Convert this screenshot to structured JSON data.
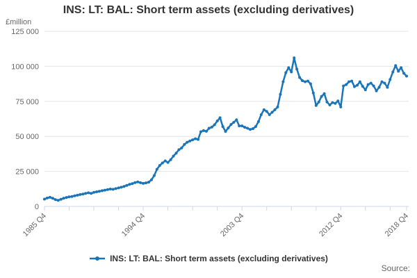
{
  "header": {
    "title": "INS: LT: BAL: Short term assets (excluding derivatives)"
  },
  "legend": {
    "label": "INS: LT: BAL: Short term assets (excluding derivatives)"
  },
  "footer": {
    "source_label": "Source:"
  },
  "colors": {
    "line": "#1974b9",
    "grid": "#e6e6e6",
    "axis": "#ccd6eb",
    "tick_text": "#666666",
    "title_text": "#333333"
  },
  "chart_data": {
    "type": "line",
    "title": "INS: LT: BAL: Short term assets (excluding derivatives)",
    "unit_label": "£million",
    "frequency": "quarterly",
    "x_start_label": "1985 Q4",
    "x_end_label": "2018 Q4",
    "x_range_quarters": 132,
    "ylim": [
      0,
      125000
    ],
    "grid": true,
    "legend_position": "bottom-center",
    "y_axis": {
      "ticks": [
        {
          "label": "0",
          "value": 0
        },
        {
          "label": "25 000",
          "value": 25000
        },
        {
          "label": "50 000",
          "value": 50000
        },
        {
          "label": "75 000",
          "value": 75000
        },
        {
          "label": "100 000",
          "value": 100000
        },
        {
          "label": "125 000",
          "value": 125000
        }
      ]
    },
    "x_axis": {
      "labeled_ticks": [
        {
          "label": "1985 Q4",
          "quarter_index": 0
        },
        {
          "label": "1994 Q4",
          "quarter_index": 36
        },
        {
          "label": "2003 Q4",
          "quarter_index": 72
        },
        {
          "label": "2012 Q4",
          "quarter_index": 108
        },
        {
          "label": "2018 Q4",
          "quarter_index": 132
        }
      ],
      "minor_tick_step_quarters": 9
    },
    "series": [
      {
        "name": "INS: LT: BAL: Short term assets (excluding derivatives)",
        "color": "#1974b9",
        "values": [
          5200,
          6000,
          6500,
          5800,
          4800,
          4300,
          5100,
          5800,
          6400,
          6800,
          7100,
          7600,
          8000,
          8500,
          8800,
          9300,
          9700,
          9300,
          10000,
          10400,
          10800,
          11200,
          11600,
          12000,
          12400,
          12200,
          12700,
          13200,
          13700,
          14300,
          15000,
          15700,
          16200,
          17000,
          17500,
          16900,
          16400,
          16800,
          17300,
          19000,
          22000,
          26500,
          29200,
          31000,
          32500,
          31400,
          33400,
          35900,
          38000,
          40500,
          41700,
          44200,
          45800,
          46700,
          47500,
          48300,
          47800,
          53300,
          54100,
          53600,
          55800,
          56600,
          58300,
          61000,
          63300,
          57000,
          53500,
          56000,
          58500,
          60000,
          61800,
          57500,
          57500,
          56500,
          55800,
          54900,
          55500,
          57000,
          60500,
          65500,
          69000,
          67800,
          65500,
          67200,
          69000,
          71000,
          80000,
          89000,
          95500,
          99000,
          96000,
          106000,
          98000,
          92000,
          89800,
          89000,
          89500,
          87500,
          81000,
          72000,
          74500,
          78500,
          80500,
          74500,
          72400,
          74100,
          73500,
          75300,
          71000,
          86000,
          87000,
          89000,
          89500,
          85500,
          86500,
          89000,
          85700,
          83200,
          87000,
          88000,
          86000,
          82500,
          85000,
          89000,
          88000,
          85000,
          90600,
          96000,
          100500,
          96500,
          99000,
          95000,
          93000
        ]
      }
    ]
  }
}
